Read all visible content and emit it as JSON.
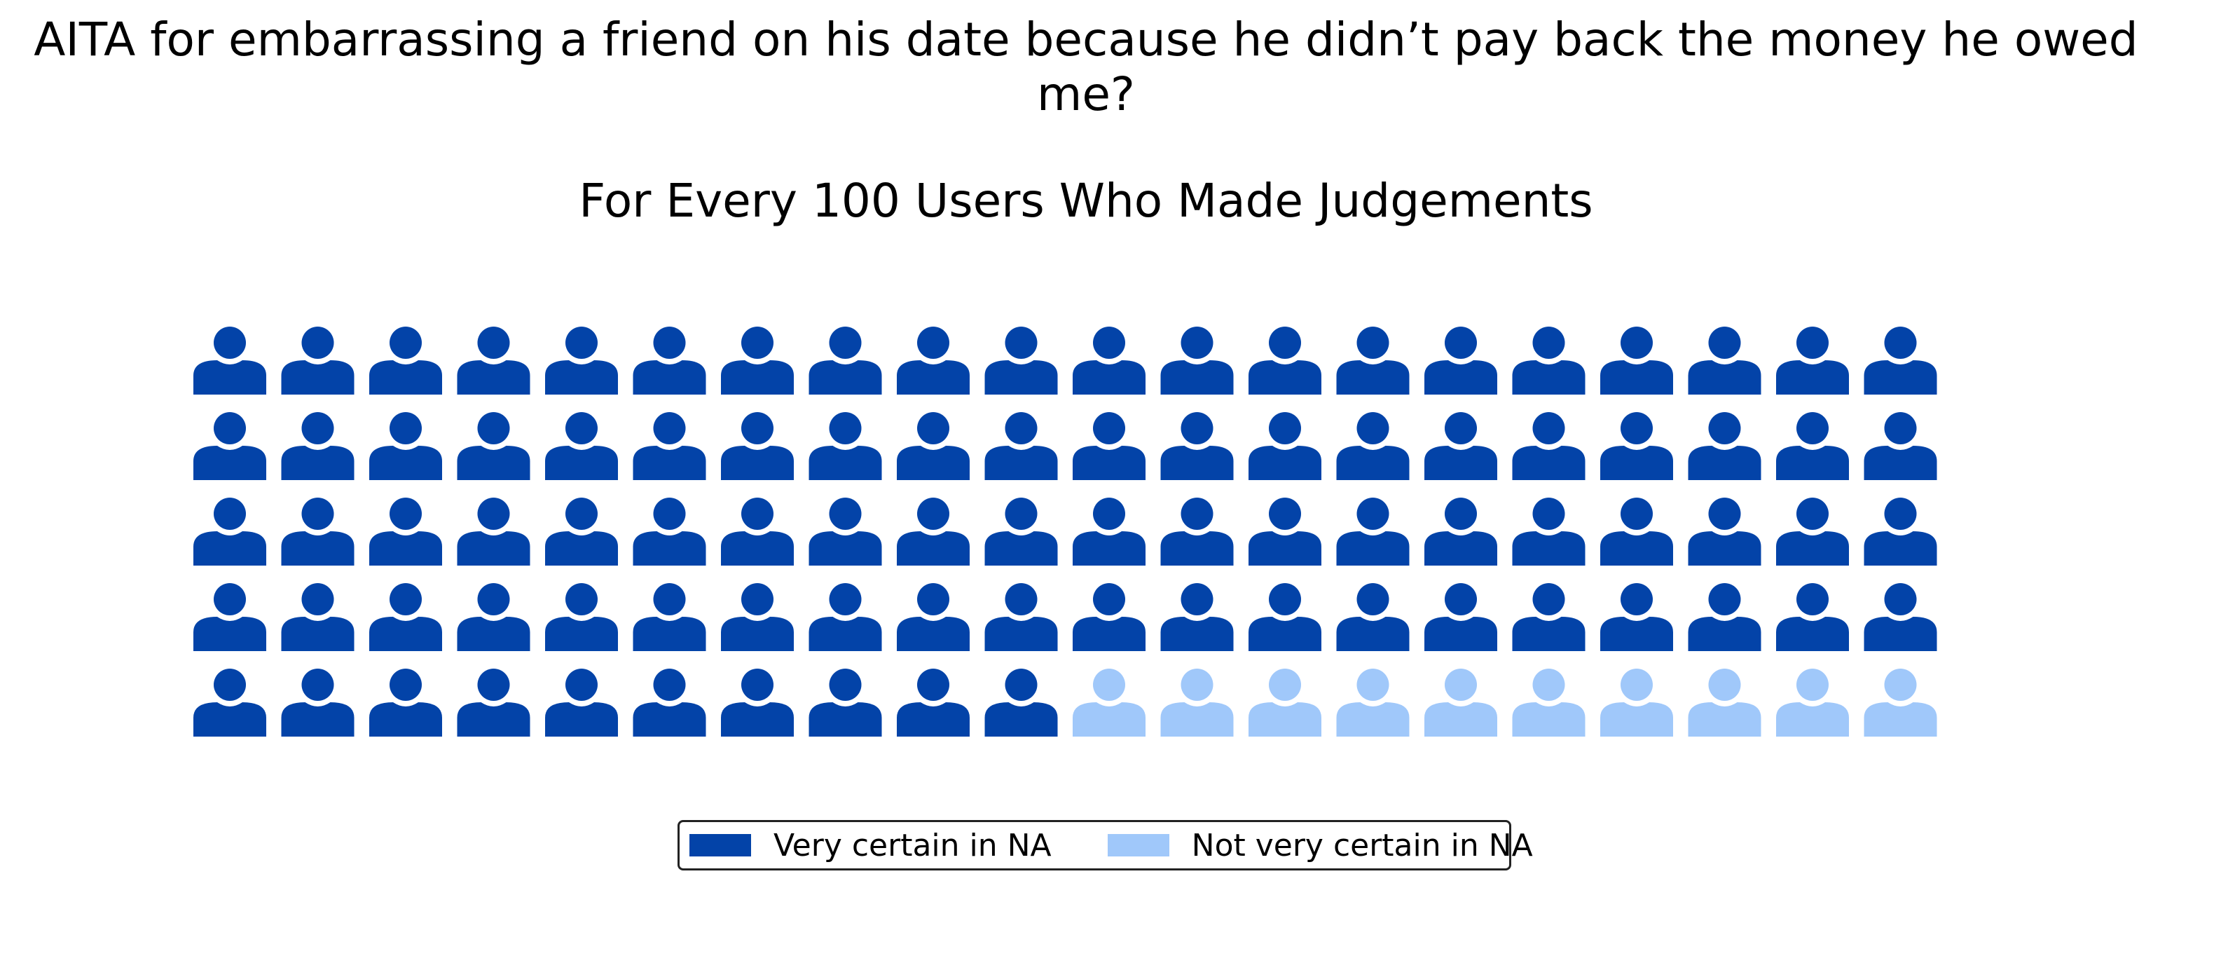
{
  "chart_data": {
    "type": "waffle",
    "title": "AITA for embarrassing a friend on his date because he didn’t pay back the money he owed me?",
    "subtitle": "For Every 100 Users Who Made Judgements",
    "icon": "person-icon",
    "rows": 5,
    "columns": 20,
    "categories": [
      {
        "name": "Very certain in NA",
        "value": 90,
        "color": "#0343A8"
      },
      {
        "name": "Not very certain in NA",
        "value": 10,
        "color": "#A0C8FA"
      }
    ],
    "legend_position": "bottom-center",
    "grid": false
  }
}
